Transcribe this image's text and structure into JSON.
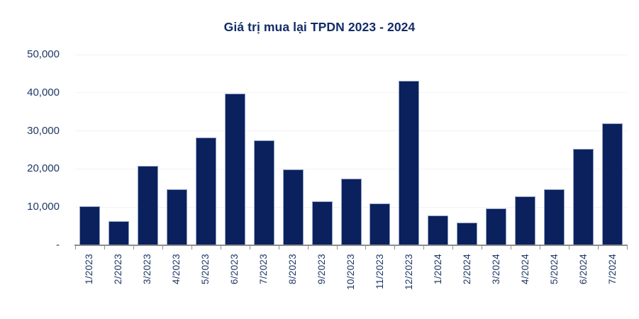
{
  "title": "Giá trị mua lại TPDN 2023 - 2024",
  "chart_data": {
    "type": "bar",
    "title": "Giá trị mua lại TPDN 2023 - 2024",
    "categories": [
      "1/2023",
      "2/2023",
      "3/2023",
      "4/2023",
      "5/2023",
      "6/2023",
      "7/2023",
      "8/2023",
      "9/2023",
      "10/2023",
      "11/2023",
      "12/2023",
      "1/2024",
      "2/2024",
      "3/2024",
      "4/2024",
      "5/2024",
      "6/2024",
      "7/2024"
    ],
    "values": [
      10300,
      6400,
      20900,
      14700,
      28300,
      39700,
      27500,
      19900,
      11500,
      17500,
      11000,
      43200,
      7900,
      6000,
      9700,
      12800,
      14700,
      25300,
      32000
    ],
    "xlabel": "",
    "ylabel": "",
    "ylim": [
      0,
      50000
    ],
    "yticks": [
      {
        "value": 0,
        "label": "-"
      },
      {
        "value": 10000,
        "label": "10,000"
      },
      {
        "value": 20000,
        "label": "20,000"
      },
      {
        "value": 30000,
        "label": "30,000"
      },
      {
        "value": 40000,
        "label": "40,000"
      },
      {
        "value": 50000,
        "label": "50,000"
      }
    ],
    "grid": "horizontal",
    "legend_position": "none",
    "x_tick_label_rotation_deg": 90,
    "colors": {
      "bar_fill": "#0a215e",
      "bar_border": "#93a0c0",
      "title_text": "#122c68",
      "axis_text": "#1f3864",
      "gridline": "#f2f2f2",
      "axis_line": "#8e8e8e",
      "background": "#ffffff"
    }
  }
}
